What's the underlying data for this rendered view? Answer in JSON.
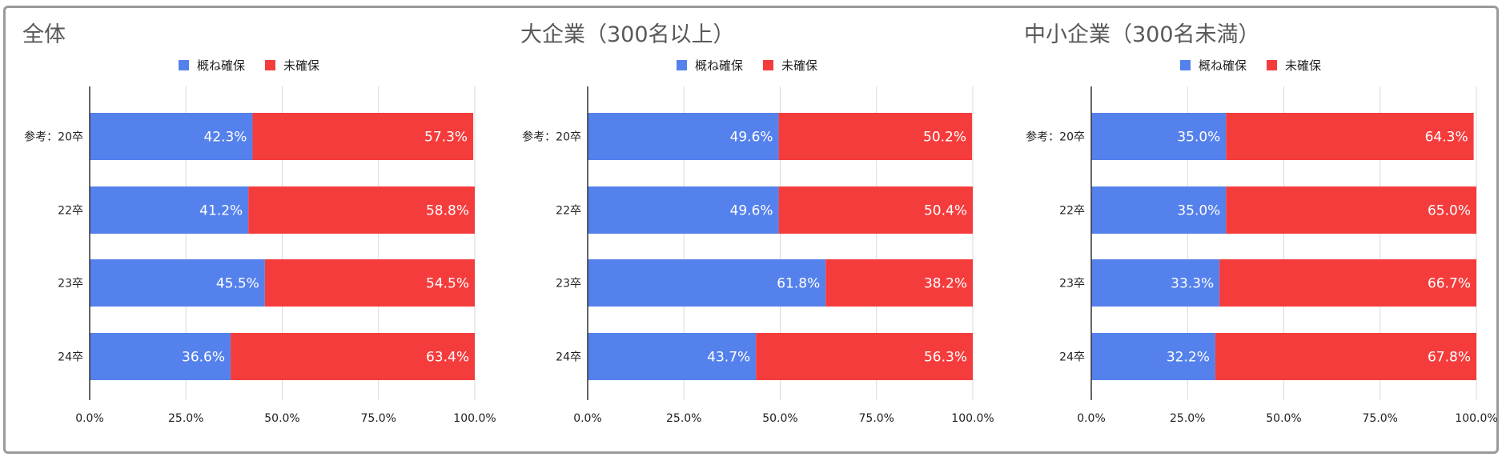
{
  "chart_data": [
    {
      "type": "bar",
      "orientation": "horizontal",
      "stacked": true,
      "title": "全体",
      "categories": [
        "参考：20卒",
        "22卒",
        "23卒",
        "24卒"
      ],
      "series": [
        {
          "name": "概ね確保",
          "values": [
            42.3,
            41.2,
            45.5,
            36.6
          ],
          "labels": [
            "42.3%",
            "41.2%",
            "45.5%",
            "36.6%"
          ]
        },
        {
          "name": "未確保",
          "values": [
            57.3,
            58.8,
            54.5,
            63.4
          ],
          "labels": [
            "57.3%",
            "58.8%",
            "54.5%",
            "63.4%"
          ]
        }
      ],
      "xlim": [
        0,
        100
      ],
      "xticks": [
        "0.0%",
        "25.0%",
        "50.0%",
        "75.0%",
        "100.0%"
      ],
      "grid": true,
      "legend": "top"
    },
    {
      "type": "bar",
      "orientation": "horizontal",
      "stacked": true,
      "title": "大企業（300名以上）",
      "categories": [
        "参考：20卒",
        "22卒",
        "23卒",
        "24卒"
      ],
      "series": [
        {
          "name": "概ね確保",
          "values": [
            49.6,
            49.6,
            61.8,
            43.7
          ],
          "labels": [
            "49.6%",
            "49.6%",
            "61.8%",
            "43.7%"
          ]
        },
        {
          "name": "未確保",
          "values": [
            50.2,
            50.4,
            38.2,
            56.3
          ],
          "labels": [
            "50.2%",
            "50.4%",
            "38.2%",
            "56.3%"
          ]
        }
      ],
      "xlim": [
        0,
        100
      ],
      "xticks": [
        "0.0%",
        "25.0%",
        "50.0%",
        "75.0%",
        "100.0%"
      ],
      "grid": true,
      "legend": "top"
    },
    {
      "type": "bar",
      "orientation": "horizontal",
      "stacked": true,
      "title": "中小企業（300名未満）",
      "categories": [
        "参考：20卒",
        "22卒",
        "23卒",
        "24卒"
      ],
      "series": [
        {
          "name": "概ね確保",
          "values": [
            35.0,
            35.0,
            33.3,
            32.2
          ],
          "labels": [
            "35.0%",
            "35.0%",
            "33.3%",
            "32.2%"
          ]
        },
        {
          "name": "未確保",
          "values": [
            64.3,
            65.0,
            66.7,
            67.8
          ],
          "labels": [
            "64.3%",
            "65.0%",
            "66.7%",
            "67.8%"
          ]
        }
      ],
      "xlim": [
        0,
        100
      ],
      "xticks": [
        "0.0%",
        "25.0%",
        "50.0%",
        "75.0%",
        "100.0%"
      ],
      "grid": true,
      "legend": "top"
    }
  ],
  "colors": {
    "series": [
      "#5581ec",
      "#f53c3c"
    ],
    "grid": "#d9d9d9",
    "axis": "#333333"
  }
}
